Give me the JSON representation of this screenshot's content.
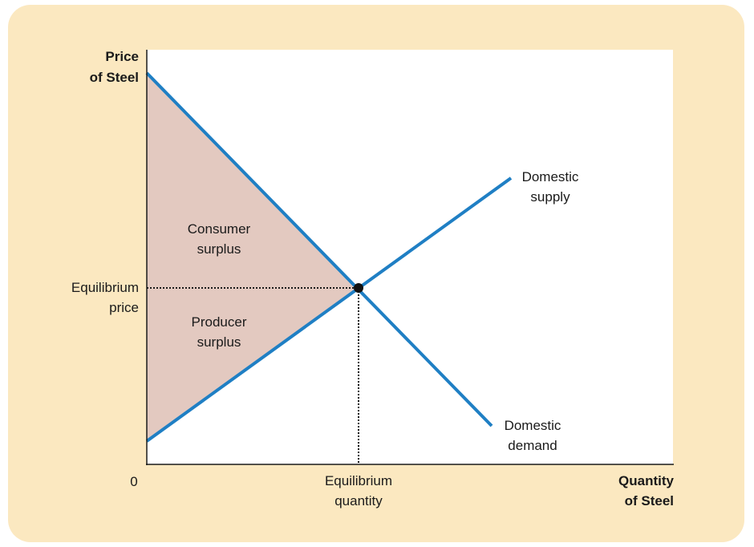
{
  "axes": {
    "y_label": "Price\nof Steel",
    "x_label": "Quantity\nof Steel",
    "origin": "0"
  },
  "equilibrium": {
    "price_label": "Equilibrium\nprice",
    "quantity_label": "Equilibrium\nquantity"
  },
  "curves": {
    "supply_label": "Domestic\nsupply",
    "demand_label": "Domestic\ndemand",
    "color": "#1f7fc4"
  },
  "regions": {
    "consumer_surplus": "Consumer\nsurplus",
    "producer_surplus": "Producer\nsurplus",
    "fill_color": "#e3c9c0"
  },
  "colors": {
    "frame": "#fbe8c0",
    "plot_background": "#ffffff",
    "axis": "#1a1a1a"
  }
}
